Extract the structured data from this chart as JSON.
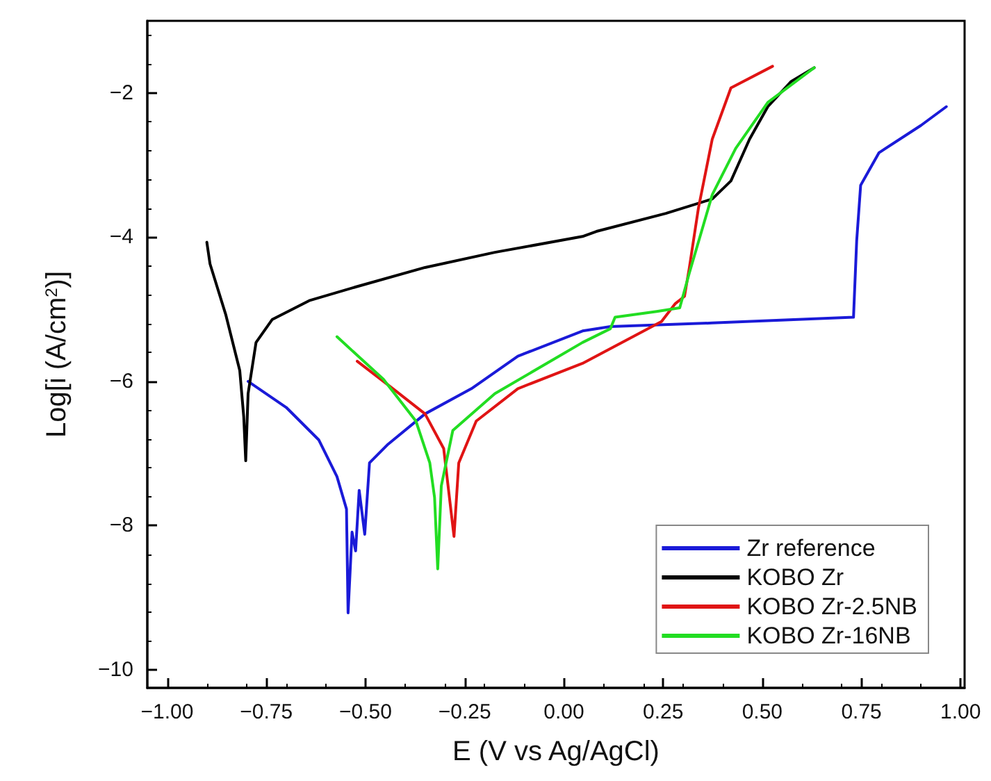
{
  "chart_data": {
    "type": "line",
    "xlabel": "E (V vs Ag/AgCl)",
    "ylabel": "Log[i (A/cm$^{2}$)]",
    "xlim": [
      -1.05,
      1.01
    ],
    "ylim": [
      -10.25,
      -1.0
    ],
    "xticks": [
      {
        "value": -1,
        "label": "−1.00"
      },
      {
        "value": -0.75,
        "label": "−0.75"
      },
      {
        "value": -0.5,
        "label": "−0.50"
      },
      {
        "value": -0.25,
        "label": "−0.25"
      },
      {
        "value": 0,
        "label": "0.00"
      },
      {
        "value": 0.25,
        "label": "0.25"
      },
      {
        "value": 0.5,
        "label": "0.50"
      },
      {
        "value": 0.75,
        "label": "0.75"
      },
      {
        "value": 1,
        "label": "1.00"
      }
    ],
    "yticks": [
      {
        "value": -10,
        "label": "−10"
      },
      {
        "value": -8,
        "label": "−8"
      },
      {
        "value": -6,
        "label": "−6"
      },
      {
        "value": -4,
        "label": "−4"
      },
      {
        "value": -2,
        "label": "−2"
      }
    ],
    "grid": false,
    "legend": "bottom right",
    "marker": "none",
    "line_style": "solid",
    "series": [
      {
        "name": "Zr reference",
        "color": "#1a1ad8",
        "x": [
          -0.796,
          -0.7,
          -0.618,
          -0.572,
          -0.548,
          -0.544,
          -0.534,
          -0.525,
          -0.516,
          -0.502,
          -0.49,
          -0.443,
          -0.35,
          -0.233,
          -0.116,
          0.047,
          0.117,
          0.374,
          0.73,
          0.738,
          0.748,
          0.794,
          0.9,
          0.964
        ],
        "values": [
          -6.0,
          -6.36,
          -6.81,
          -7.32,
          -7.77,
          -9.21,
          -8.09,
          -8.35,
          -7.51,
          -8.12,
          -7.13,
          -6.87,
          -6.45,
          -6.1,
          -5.65,
          -5.3,
          -5.24,
          -5.19,
          -5.11,
          -4.05,
          -3.28,
          -2.83,
          -2.45,
          -2.19
        ]
      },
      {
        "name": "KOBO Zr",
        "color": "#000000",
        "x": [
          -0.9,
          -0.892,
          -0.852,
          -0.817,
          -0.807,
          -0.802,
          -0.796,
          -0.776,
          -0.735,
          -0.642,
          -0.525,
          -0.35,
          -0.174,
          0.047,
          0.082,
          0.257,
          0.374,
          0.421,
          0.468,
          0.514,
          0.573,
          0.631
        ],
        "values": [
          -4.07,
          -4.37,
          -5.08,
          -5.85,
          -6.49,
          -7.1,
          -6.17,
          -5.46,
          -5.14,
          -4.88,
          -4.69,
          -4.42,
          -4.21,
          -3.99,
          -3.92,
          -3.67,
          -3.47,
          -3.22,
          -2.64,
          -2.19,
          -1.84,
          -1.65
        ]
      },
      {
        "name": "KOBO Zr-2.5NB",
        "color": "#e01414",
        "x": [
          -0.521,
          -0.431,
          -0.35,
          -0.303,
          -0.277,
          -0.265,
          -0.221,
          -0.116,
          0.047,
          0.246,
          0.281,
          0.304,
          0.316,
          0.339,
          0.374,
          0.421,
          0.526
        ],
        "values": [
          -5.72,
          -6.1,
          -6.45,
          -6.93,
          -8.15,
          -7.13,
          -6.55,
          -6.1,
          -5.75,
          -5.17,
          -4.92,
          -4.82,
          -4.43,
          -3.6,
          -2.64,
          -1.93,
          -1.63
        ]
      },
      {
        "name": "KOBO Zr-16NB",
        "color": "#22dd22",
        "x": [
          -0.572,
          -0.455,
          -0.373,
          -0.338,
          -0.326,
          -0.318,
          -0.309,
          -0.28,
          -0.174,
          0.047,
          0.117,
          0.129,
          0.234,
          0.292,
          0.316,
          0.374,
          0.433,
          0.514,
          0.631
        ],
        "values": [
          -5.38,
          -5.97,
          -6.55,
          -7.13,
          -7.61,
          -8.6,
          -7.45,
          -6.68,
          -6.17,
          -5.46,
          -5.27,
          -5.11,
          -5.03,
          -4.98,
          -4.5,
          -3.41,
          -2.77,
          -2.13,
          -1.65
        ]
      }
    ]
  }
}
